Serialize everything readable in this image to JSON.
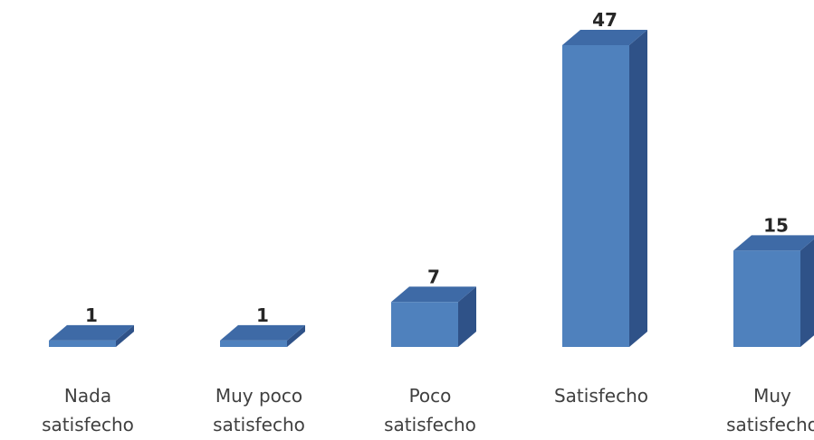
{
  "chart_data": {
    "type": "bar",
    "style": "3d-column",
    "categories": [
      [
        "Nada",
        "satisfecho"
      ],
      [
        "Muy poco",
        "satisfecho"
      ],
      [
        "Poco",
        "satisfecho"
      ],
      [
        "Satisfecho"
      ],
      [
        "Muy",
        "satisfecho"
      ]
    ],
    "values": [
      1,
      1,
      7,
      47,
      15
    ],
    "title": "",
    "xlabel": "",
    "ylabel": "",
    "ylim": [
      0,
      47
    ],
    "grid": false,
    "legend": "none",
    "colors": {
      "front": "#4f81bd",
      "side": "#2f5288",
      "top": "#3e6aa6",
      "label": "#262626",
      "category_label": "#404040"
    }
  }
}
